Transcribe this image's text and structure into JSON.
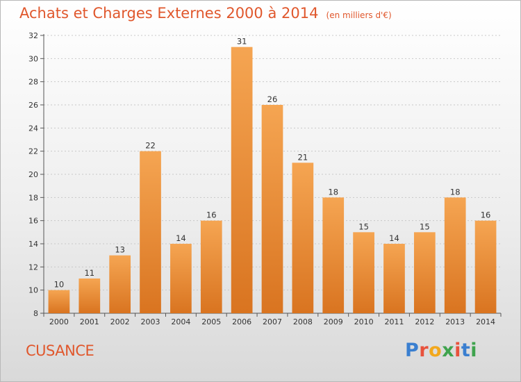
{
  "title": "Achats et Charges Externes 2000 à 2014",
  "subtitle": "(en milliers d'€)",
  "commune": "CUSANCE",
  "logo": {
    "text": "Proxiti",
    "letter_colors": [
      "#3a7fd0",
      "#e8523c",
      "#f2a81d",
      "#3fa34d",
      "#e8523c",
      "#3a7fd0",
      "#3fa34d"
    ]
  },
  "colors": {
    "title": "#e0572c",
    "bar_top": "#f5a552",
    "bar_bottom": "#d97420",
    "grid": "#c8c8c8"
  },
  "chart_data": {
    "type": "bar",
    "title": "Achats et Charges Externes 2000 à 2014",
    "subtitle": "(en milliers d'€)",
    "xlabel": "",
    "ylabel": "",
    "categories": [
      "2000",
      "2001",
      "2002",
      "2003",
      "2004",
      "2005",
      "2006",
      "2007",
      "2008",
      "2009",
      "2010",
      "2011",
      "2012",
      "2013",
      "2014"
    ],
    "values": [
      10,
      11,
      13,
      22,
      14,
      16,
      31,
      26,
      21,
      18,
      15,
      14,
      15,
      18,
      16
    ],
    "ylim": [
      8,
      32
    ],
    "yticks": [
      8,
      10,
      12,
      14,
      16,
      18,
      20,
      22,
      24,
      26,
      28,
      30,
      32
    ],
    "grid": true,
    "data_labels": true
  }
}
